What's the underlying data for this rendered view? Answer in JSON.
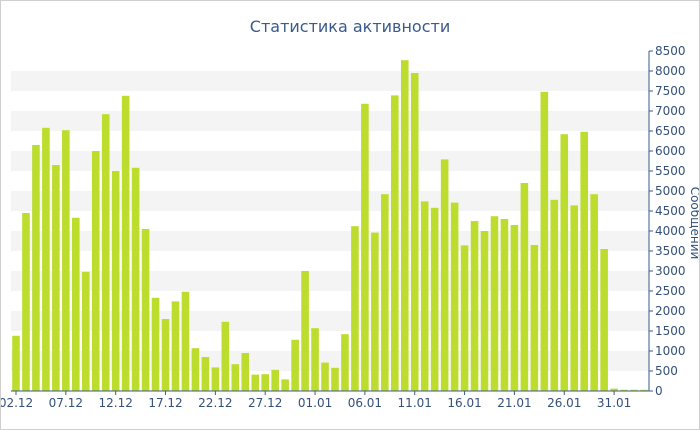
{
  "chart_data": {
    "type": "bar",
    "title": "Статистика активности",
    "xlabel": "",
    "ylabel": "Сообщений",
    "ylim": [
      0,
      8500
    ],
    "y_ticks": [
      0,
      500,
      1000,
      1500,
      2000,
      2500,
      3000,
      3500,
      4000,
      4500,
      5000,
      5500,
      6000,
      6500,
      7000,
      7500,
      8000,
      8500
    ],
    "y_axis_position": "right",
    "grid": "horizontal alternating bands",
    "bar_color": "#bcdc2e",
    "band_color": "#f4f4f4",
    "axis_color": "#3a5a8c",
    "categories": [
      "02.12",
      "03.12",
      "04.12",
      "05.12",
      "06.12",
      "07.12",
      "08.12",
      "09.12",
      "10.12",
      "11.12",
      "12.12",
      "13.12",
      "14.12",
      "15.12",
      "16.12",
      "17.12",
      "18.12",
      "19.12",
      "20.12",
      "21.12",
      "22.12",
      "23.12",
      "24.12",
      "25.12",
      "26.12",
      "27.12",
      "28.12",
      "29.12",
      "30.12",
      "31.12",
      "01.01",
      "02.01",
      "03.01",
      "04.01",
      "05.01",
      "06.01",
      "07.01",
      "08.01",
      "09.01",
      "10.01",
      "11.01",
      "12.01",
      "13.01",
      "14.01",
      "15.01",
      "16.01",
      "17.01",
      "18.01",
      "19.01",
      "20.01",
      "21.01",
      "22.01",
      "23.01",
      "24.01",
      "25.01",
      "26.01",
      "27.01",
      "28.01",
      "29.01",
      "30.01",
      "31.01",
      "01.02",
      "02.02",
      "03.02"
    ],
    "x_tick_labels": [
      "02.12",
      "07.12",
      "12.12",
      "17.12",
      "22.12",
      "27.12",
      "01.01",
      "06.01",
      "11.01",
      "16.01",
      "21.01",
      "26.01",
      "31.01"
    ],
    "values": [
      1380,
      4450,
      6150,
      6580,
      5650,
      6520,
      4330,
      2980,
      6000,
      6920,
      5500,
      7380,
      5580,
      4050,
      2330,
      1800,
      2240,
      2480,
      1070,
      850,
      590,
      1730,
      670,
      950,
      410,
      420,
      530,
      290,
      1280,
      3000,
      1570,
      710,
      580,
      1420,
      4120,
      7180,
      3960,
      4920,
      7390,
      8270,
      7950,
      4740,
      4580,
      5790,
      4710,
      3640,
      4250,
      4000,
      4370,
      4300,
      4150,
      5200,
      3650,
      7480,
      4780,
      6420,
      4640,
      6480,
      4920,
      3550,
      60,
      30,
      30,
      30
    ]
  }
}
